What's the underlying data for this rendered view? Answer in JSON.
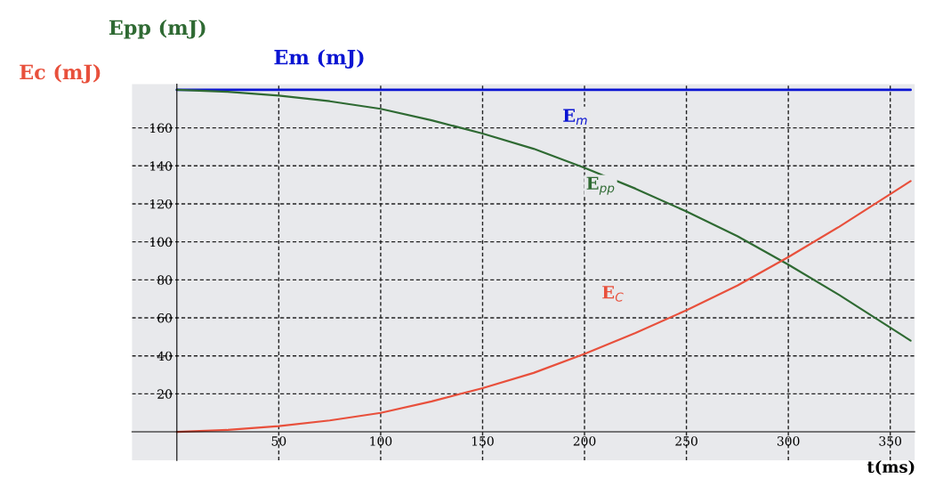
{
  "chart_data": {
    "type": "line",
    "ylabel": "Ec (mJ)",
    "xlabel": "t(ms)",
    "annotations": [
      "Epp (mJ)",
      "Em (mJ)"
    ],
    "x": [
      0,
      25,
      50,
      75,
      100,
      125,
      150,
      175,
      200,
      225,
      250,
      275,
      300,
      325,
      360
    ],
    "series": [
      {
        "name": "E$_{m}$",
        "color": "#0a14d2",
        "values": [
          180,
          180,
          180,
          180,
          180,
          180,
          180,
          180,
          180,
          180,
          180,
          180,
          180,
          180,
          180
        ]
      },
      {
        "name": "E$_{pp}$",
        "color": "#2f6a33",
        "values": [
          180,
          179,
          177,
          174,
          170,
          164,
          157,
          149,
          139,
          128,
          116,
          103,
          88,
          72,
          48
        ]
      },
      {
        "name": "E$_{C}$",
        "color": "#e8503c",
        "values": [
          0,
          1,
          3,
          6,
          10,
          16,
          23,
          31,
          41,
          52,
          64,
          77,
          92,
          108,
          132
        ]
      }
    ],
    "xlim": [
      -22,
      362
    ],
    "ylim": [
      -15,
      183
    ],
    "xticks": [
      50,
      100,
      150,
      200,
      250,
      300,
      350
    ],
    "yticks": [
      20,
      40,
      60,
      80,
      100,
      120,
      140,
      160
    ],
    "grid": true,
    "line_style": "solid"
  }
}
